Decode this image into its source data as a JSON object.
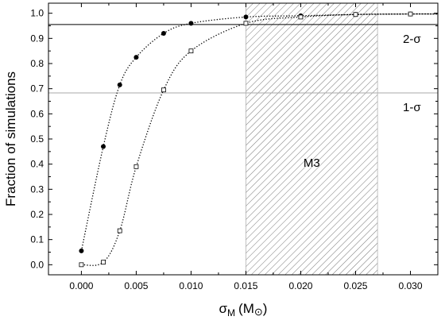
{
  "chart_data": {
    "type": "scatter",
    "xlim": [
      -0.003,
      0.0325
    ],
    "ylim": [
      -0.04,
      1.04
    ],
    "x_ticks": [
      0.0,
      0.005,
      0.01,
      0.015,
      0.02,
      0.025,
      0.03
    ],
    "x_tick_labels": [
      "0.000",
      "0.005",
      "0.010",
      "0.015",
      "0.020",
      "0.025",
      "0.030"
    ],
    "y_ticks": [
      0.0,
      0.1,
      0.2,
      0.3,
      0.4,
      0.5,
      0.6,
      0.7,
      0.8,
      0.9,
      1.0
    ],
    "y_tick_labels": [
      "0.0",
      "0.1",
      "0.2",
      "0.3",
      "0.4",
      "0.5",
      "0.6",
      "0.7",
      "0.8",
      "0.9",
      "1.0"
    ],
    "xlabel_main": "σ",
    "xlabel_sub": "M",
    "xlabel_unit": "(M",
    "xlabel_unit_symbol": "⊙",
    "xlabel_close": ")",
    "ylabel": "Fraction of simulations",
    "grid": false,
    "series": [
      {
        "marker": "filled-circle",
        "x": [
          0.0,
          0.002,
          0.0035,
          0.005,
          0.0075,
          0.01,
          0.015,
          0.02,
          0.025,
          0.03
        ],
        "y": [
          0.055,
          0.47,
          0.715,
          0.825,
          0.92,
          0.96,
          0.985,
          0.99,
          0.995,
          0.997
        ]
      },
      {
        "marker": "open-square",
        "x": [
          0.0,
          0.002,
          0.0035,
          0.005,
          0.0075,
          0.01,
          0.015,
          0.02,
          0.025,
          0.03
        ],
        "y": [
          0.0,
          0.01,
          0.135,
          0.39,
          0.695,
          0.85,
          0.96,
          0.985,
          0.995,
          0.997
        ]
      }
    ],
    "reference_lines": [
      {
        "y": 0.955,
        "label": "2-σ",
        "color": "#000000"
      },
      {
        "y": 0.683,
        "label": "1-σ",
        "color": "#aaaaaa"
      }
    ],
    "shaded_region": {
      "x_start": 0.015,
      "x_end": 0.027,
      "label": "M3"
    }
  }
}
